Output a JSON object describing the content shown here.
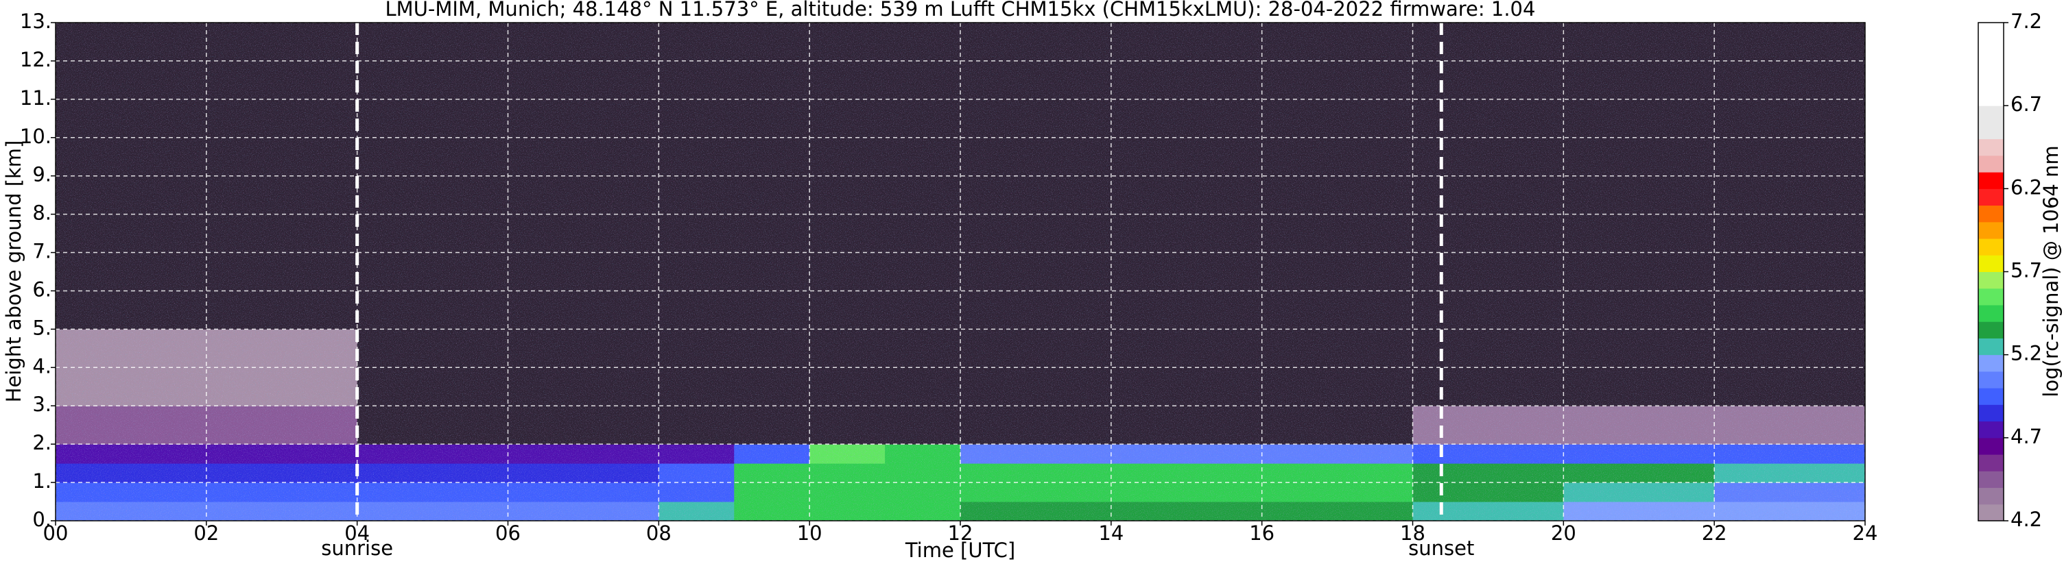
{
  "chart_data": {
    "type": "heatmap",
    "title": "LMU-MIM, Munich; 48.148° N 11.573° E, altitude: 539 m    Lufft CHM15kx (CHM15kxLMU): 28-04-2022    firmware: 1.04",
    "xlabel": "Time [UTC]",
    "ylabel": "Height above ground [km]",
    "xlim": [
      0,
      24
    ],
    "ylim": [
      0,
      13
    ],
    "xticks": [
      {
        "value": 0,
        "label": "00"
      },
      {
        "value": 2,
        "label": "02"
      },
      {
        "value": 4,
        "label": "04"
      },
      {
        "value": 6,
        "label": "06"
      },
      {
        "value": 8,
        "label": "08"
      },
      {
        "value": 10,
        "label": "10"
      },
      {
        "value": 12,
        "label": "12"
      },
      {
        "value": 14,
        "label": "14"
      },
      {
        "value": 16,
        "label": "16"
      },
      {
        "value": 18,
        "label": "18"
      },
      {
        "value": 20,
        "label": "20"
      },
      {
        "value": 22,
        "label": "22"
      },
      {
        "value": 24,
        "label": "24"
      }
    ],
    "yticks": [
      {
        "value": 0,
        "label": "0."
      },
      {
        "value": 1,
        "label": "1."
      },
      {
        "value": 2,
        "label": "2."
      },
      {
        "value": 3,
        "label": "3."
      },
      {
        "value": 4,
        "label": "4."
      },
      {
        "value": 5,
        "label": "5."
      },
      {
        "value": 6,
        "label": "6."
      },
      {
        "value": 7,
        "label": "7."
      },
      {
        "value": 8,
        "label": "8."
      },
      {
        "value": 9,
        "label": "9."
      },
      {
        "value": 10,
        "label": "10."
      },
      {
        "value": 11,
        "label": "11."
      },
      {
        "value": 12,
        "label": "12."
      },
      {
        "value": 13,
        "label": "13."
      }
    ],
    "grid": true,
    "x_edges": [
      0,
      1,
      2,
      3,
      4,
      5,
      6,
      7,
      8,
      9,
      10,
      11,
      12,
      13,
      14,
      15,
      16,
      17,
      18,
      19,
      20,
      21,
      22,
      23,
      24
    ],
    "y_edges": [
      0,
      0.5,
      1,
      1.5,
      2,
      3,
      5,
      13
    ],
    "z": [
      [
        5.05,
        5.05,
        5.05,
        5.05,
        5.05,
        5.05,
        5.05,
        5.05,
        5.3,
        5.4,
        5.4,
        5.4,
        5.35,
        5.35,
        5.35,
        5.35,
        5.35,
        5.35,
        5.3,
        5.3,
        5.15,
        5.15,
        5.15,
        5.15
      ],
      [
        4.95,
        4.95,
        4.95,
        4.95,
        4.95,
        4.95,
        4.95,
        4.95,
        5.0,
        5.4,
        5.4,
        5.4,
        5.4,
        5.4,
        5.4,
        5.4,
        5.4,
        5.4,
        5.35,
        5.35,
        5.3,
        5.3,
        5.1,
        5.1
      ],
      [
        4.85,
        4.85,
        4.85,
        4.85,
        4.85,
        4.85,
        4.85,
        4.85,
        4.9,
        5.5,
        5.5,
        5.45,
        5.4,
        5.4,
        5.4,
        5.4,
        5.4,
        5.4,
        5.35,
        5.35,
        5.35,
        5.35,
        5.25,
        5.25
      ],
      [
        4.8,
        4.8,
        4.8,
        4.8,
        4.8,
        4.8,
        4.8,
        4.8,
        4.8,
        5.0,
        5.6,
        5.4,
        5.1,
        5.1,
        5.1,
        5.1,
        5.1,
        5.1,
        5.0,
        5.0,
        5.0,
        5.0,
        5.0,
        5.0
      ],
      [
        4.45,
        4.45,
        4.45,
        4.45,
        null,
        null,
        null,
        null,
        null,
        null,
        null,
        null,
        null,
        null,
        null,
        null,
        null,
        null,
        4.35,
        4.35,
        4.35,
        4.35,
        4.35,
        4.35
      ],
      [
        4.3,
        4.3,
        4.3,
        4.3,
        null,
        null,
        null,
        null,
        null,
        null,
        null,
        null,
        null,
        null,
        null,
        null,
        null,
        null,
        null,
        null,
        null,
        null,
        null,
        null
      ],
      [
        null,
        null,
        null,
        null,
        null,
        null,
        null,
        null,
        null,
        null,
        null,
        null,
        null,
        null,
        null,
        null,
        null,
        null,
        null,
        null,
        null,
        null,
        null,
        null
      ]
    ],
    "nan_color": "#2f2335",
    "annotations": [
      {
        "x": 4.0,
        "label": "sunrise"
      },
      {
        "x": 18.38,
        "label": "sunset"
      }
    ],
    "colorbar": {
      "label": "log(rc-signal) @ 1064 nm",
      "lim": [
        4.2,
        7.2
      ],
      "ticks": [
        4.2,
        4.7,
        5.2,
        5.7,
        6.2,
        6.7,
        7.2
      ],
      "colors": [
        "#a890a8",
        "#9a7aa0",
        "#8a5a98",
        "#7a3090",
        "#600090",
        "#5010b0",
        "#3030e0",
        "#4060ff",
        "#6080ff",
        "#80a0ff",
        "#40c0b0",
        "#20a040",
        "#30d050",
        "#60e860",
        "#a0f060",
        "#f0f000",
        "#ffd000",
        "#ffa000",
        "#ff7000",
        "#ff2020",
        "#ff0000",
        "#f0b0b0",
        "#f0c8c8",
        "#e8e8e8",
        "#e8e8e8",
        "#ffffff",
        "#ffffff",
        "#ffffff",
        "#ffffff",
        "#ffffff"
      ]
    }
  }
}
